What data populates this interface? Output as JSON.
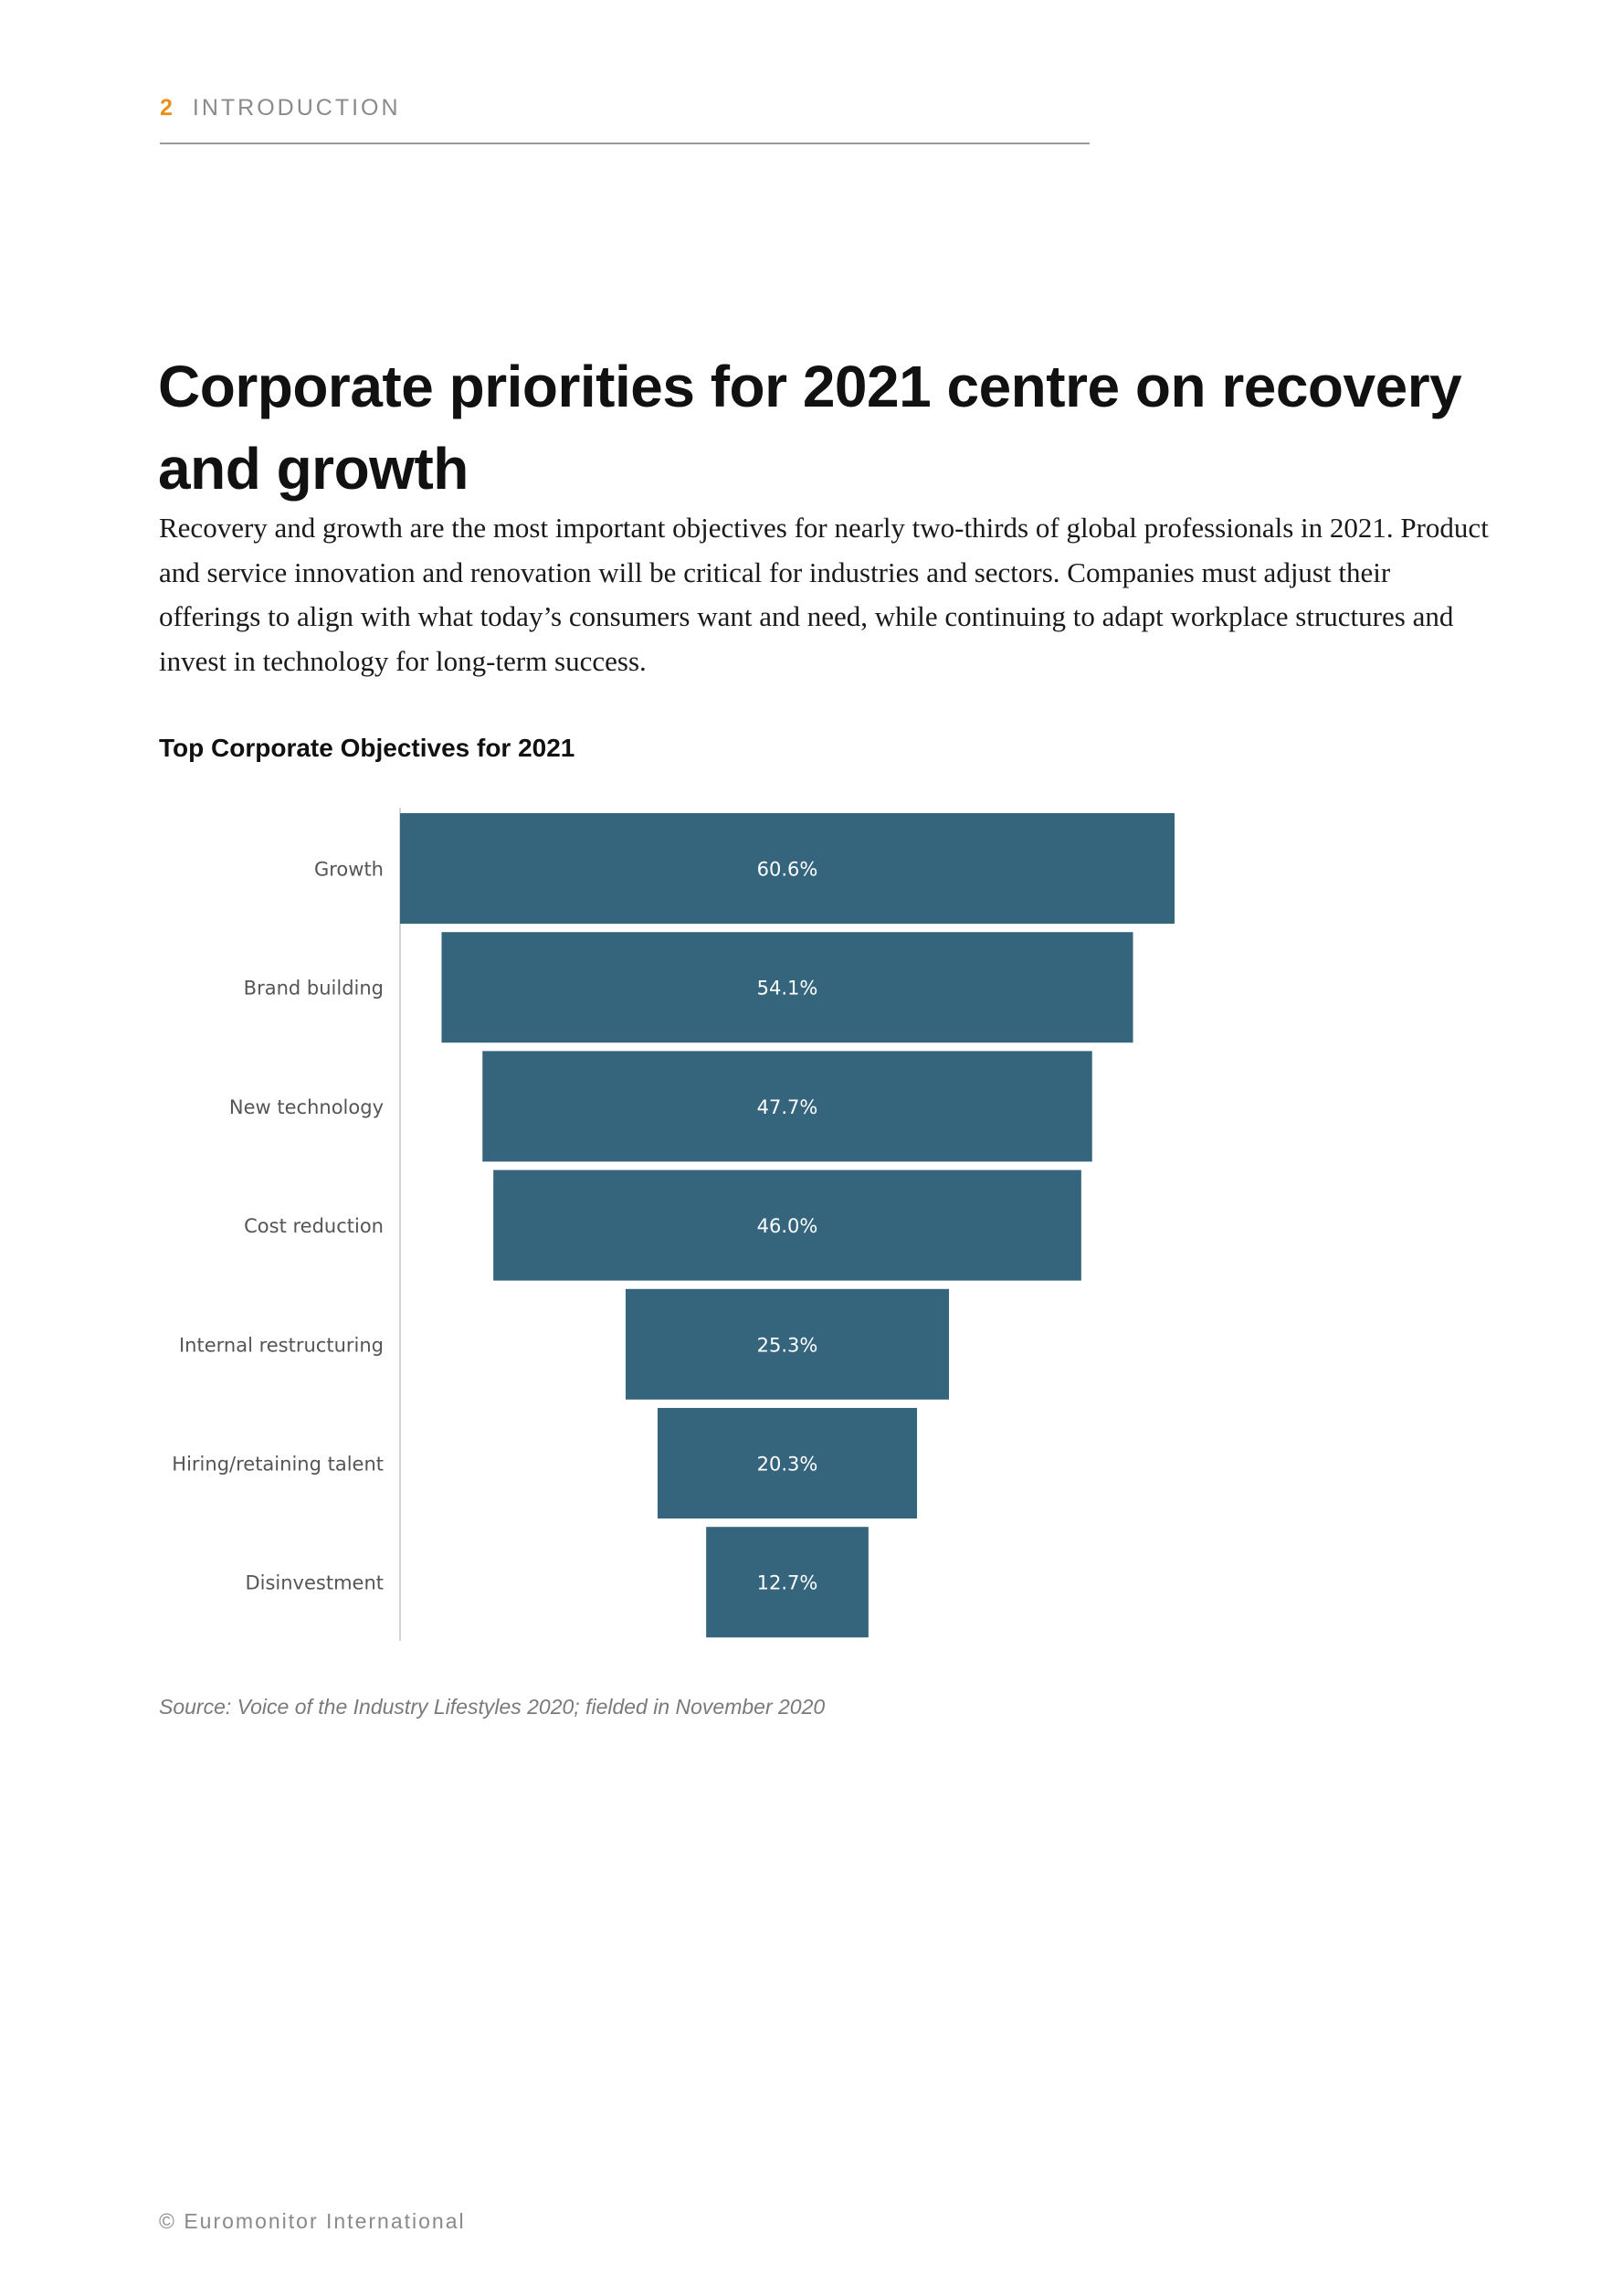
{
  "header": {
    "page_number": "2",
    "section": "INTRODUCTION",
    "accent_color": "#e8921d"
  },
  "article": {
    "title": "Corporate priorities for 2021 centre on recovery and growth",
    "body": "Recovery and growth are the most important objectives for nearly two-thirds of global professionals in 2021. Product and service innovation and renovation will be critical for industries and sectors. Companies must adjust their offerings to align with what today’s consumers want and need, while continuing to adapt workplace structures and invest in technology for long-term success."
  },
  "chart_data": {
    "type": "bar",
    "subtype": "funnel",
    "title": "Top Corporate Objectives for 2021",
    "categories": [
      "Growth",
      "Brand building",
      "New technology",
      "Cost reduction",
      "Internal restructuring",
      "Hiring/retaining talent",
      "Disinvestment"
    ],
    "values": [
      60.6,
      54.1,
      47.7,
      46.0,
      25.3,
      20.3,
      12.7
    ],
    "labels": [
      "60.6%",
      "54.1%",
      "47.7%",
      "46.0%",
      "25.3%",
      "20.3%",
      "12.7%"
    ],
    "unit": "%",
    "xlabel": "",
    "ylabel": "",
    "bar_color": "#35657c",
    "grid": false,
    "legend": "none"
  },
  "source": "Source: Voice of the Industry Lifestyles 2020; fielded in November 2020",
  "footer": "© Euromonitor International"
}
